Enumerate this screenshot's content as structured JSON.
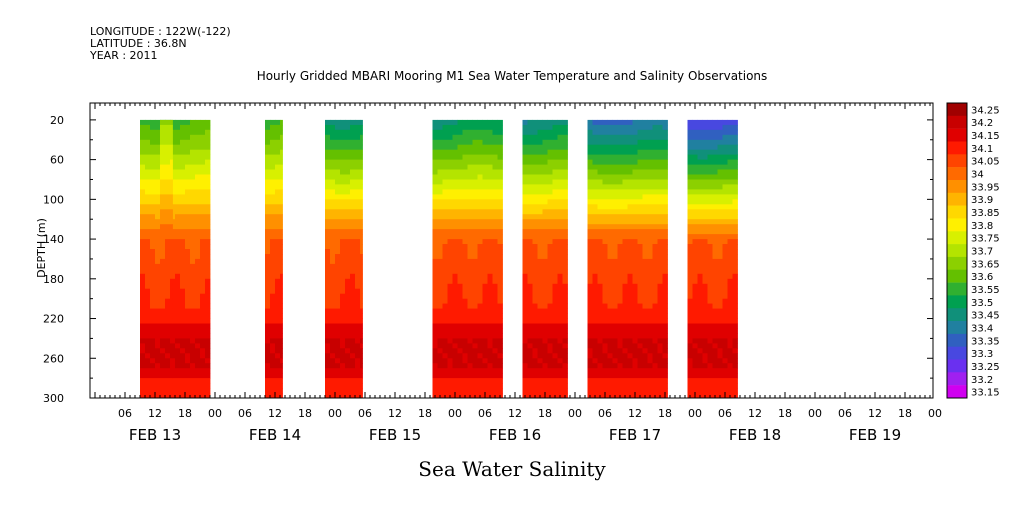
{
  "header": {
    "longitude": "LONGITUDE : 122W(-122)",
    "latitude": "LATITUDE : 36.8N",
    "year": "YEAR : 2011"
  },
  "chart_data": {
    "type": "heatmap",
    "title": "Hourly Gridded MBARI Mooring M1 Sea Water Temperature and Salinity Observations",
    "xlabel": "Sea Water Salinity",
    "ylabel": "DEPTH (m)",
    "y_inverted": true,
    "ylim": [
      300,
      3
    ],
    "y_ticks": [
      20,
      60,
      100,
      140,
      180,
      220,
      260,
      300
    ],
    "x_hour_ticks": [
      "06",
      "12",
      "18",
      "00",
      "06",
      "12",
      "18",
      "00",
      "06",
      "12",
      "18",
      "00",
      "06",
      "12",
      "18",
      "00",
      "06",
      "12",
      "18",
      "00",
      "06",
      "12",
      "18",
      "00",
      "06",
      "12",
      "18",
      "00",
      "06",
      "12",
      "18",
      "00"
    ],
    "x_date_labels": [
      "FEB 13",
      "FEB 14",
      "FEB 15",
      "FEB 16",
      "FEB 17",
      "FEB 18",
      "FEB 19"
    ],
    "data_segments_hours_from_feb13_00": [
      [
        9,
        23
      ],
      [
        13,
        15.5
      ],
      [
        34,
        37.5
      ],
      [
        46,
        53.5
      ],
      [
        67.5,
        81.5
      ],
      [
        85.5,
        94.5
      ],
      [
        98.5,
        114.5
      ],
      [
        118.5,
        128.5
      ]
    ],
    "legend_levels": [
      "34.25",
      "34.2",
      "34.15",
      "34.1",
      "34.05",
      "34",
      "33.95",
      "33.9",
      "33.85",
      "33.8",
      "33.75",
      "33.7",
      "33.65",
      "33.6",
      "33.55",
      "33.5",
      "33.45",
      "33.4",
      "33.35",
      "33.3",
      "33.25",
      "33.2",
      "33.15"
    ],
    "legend_colors": [
      "#a00000",
      "#c80000",
      "#e00000",
      "#ff1a00",
      "#ff4400",
      "#ff6a00",
      "#ff9000",
      "#ffb400",
      "#ffd800",
      "#fff000",
      "#d8f000",
      "#b4e400",
      "#8cd000",
      "#64c000",
      "#30b030",
      "#00a050",
      "#10907a",
      "#2080a0",
      "#3060c0",
      "#4848e0",
      "#6a30f0",
      "#a020f0",
      "#d000f0"
    ],
    "legend_position": "right",
    "grid": false
  }
}
